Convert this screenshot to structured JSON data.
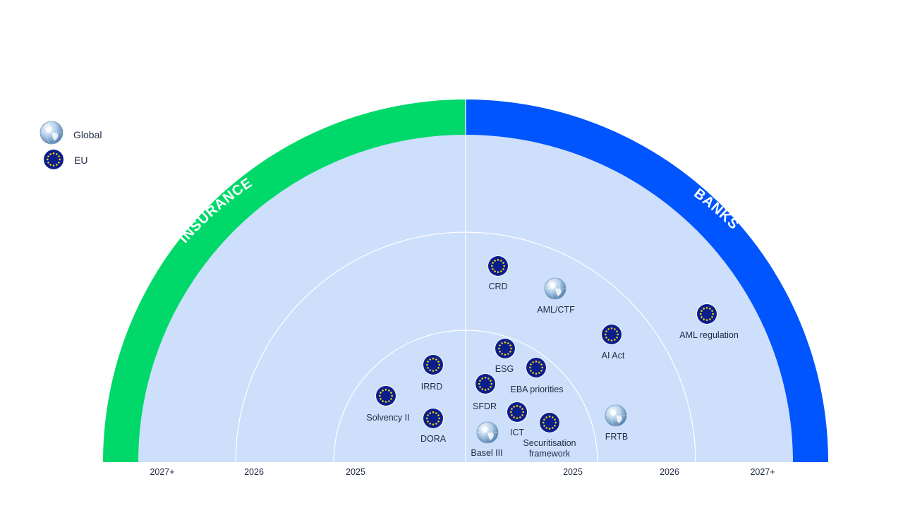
{
  "sections": {
    "left": "INSURANCE",
    "right": "BANKS"
  },
  "colors": {
    "insurance": "#00d96a",
    "banks": "#0055ff",
    "field": "#cddffb",
    "eu": "#0b1f8c",
    "eu_stars": "#ffd700",
    "ring_line": "#ffffff"
  },
  "legend": [
    {
      "icon": "globe-icon",
      "label": "Global"
    },
    {
      "icon": "eu-flag-icon",
      "label": "EU"
    }
  ],
  "years": {
    "left": [
      "2027+",
      "2026",
      "2025"
    ],
    "right": [
      "2025",
      "2026",
      "2027+"
    ]
  },
  "regulations": [
    {
      "label": "CRD",
      "type": "eu"
    },
    {
      "label": "AML/CTF",
      "type": "global"
    },
    {
      "label": "AML regulation",
      "type": "eu"
    },
    {
      "label": "AI Act",
      "type": "eu"
    },
    {
      "label": "ESG",
      "type": "eu"
    },
    {
      "label": "EBA priorities",
      "type": "eu"
    },
    {
      "label": "SFDR",
      "type": "eu"
    },
    {
      "label": "ICT",
      "type": "eu"
    },
    {
      "label": "Securitisation framework",
      "type": "eu"
    },
    {
      "label": "Basel III",
      "type": "global"
    },
    {
      "label": "FRTB",
      "type": "global"
    },
    {
      "label": "IRRD",
      "type": "eu"
    },
    {
      "label": "Solvency II",
      "type": "eu"
    },
    {
      "label": "DORA",
      "type": "eu"
    }
  ]
}
